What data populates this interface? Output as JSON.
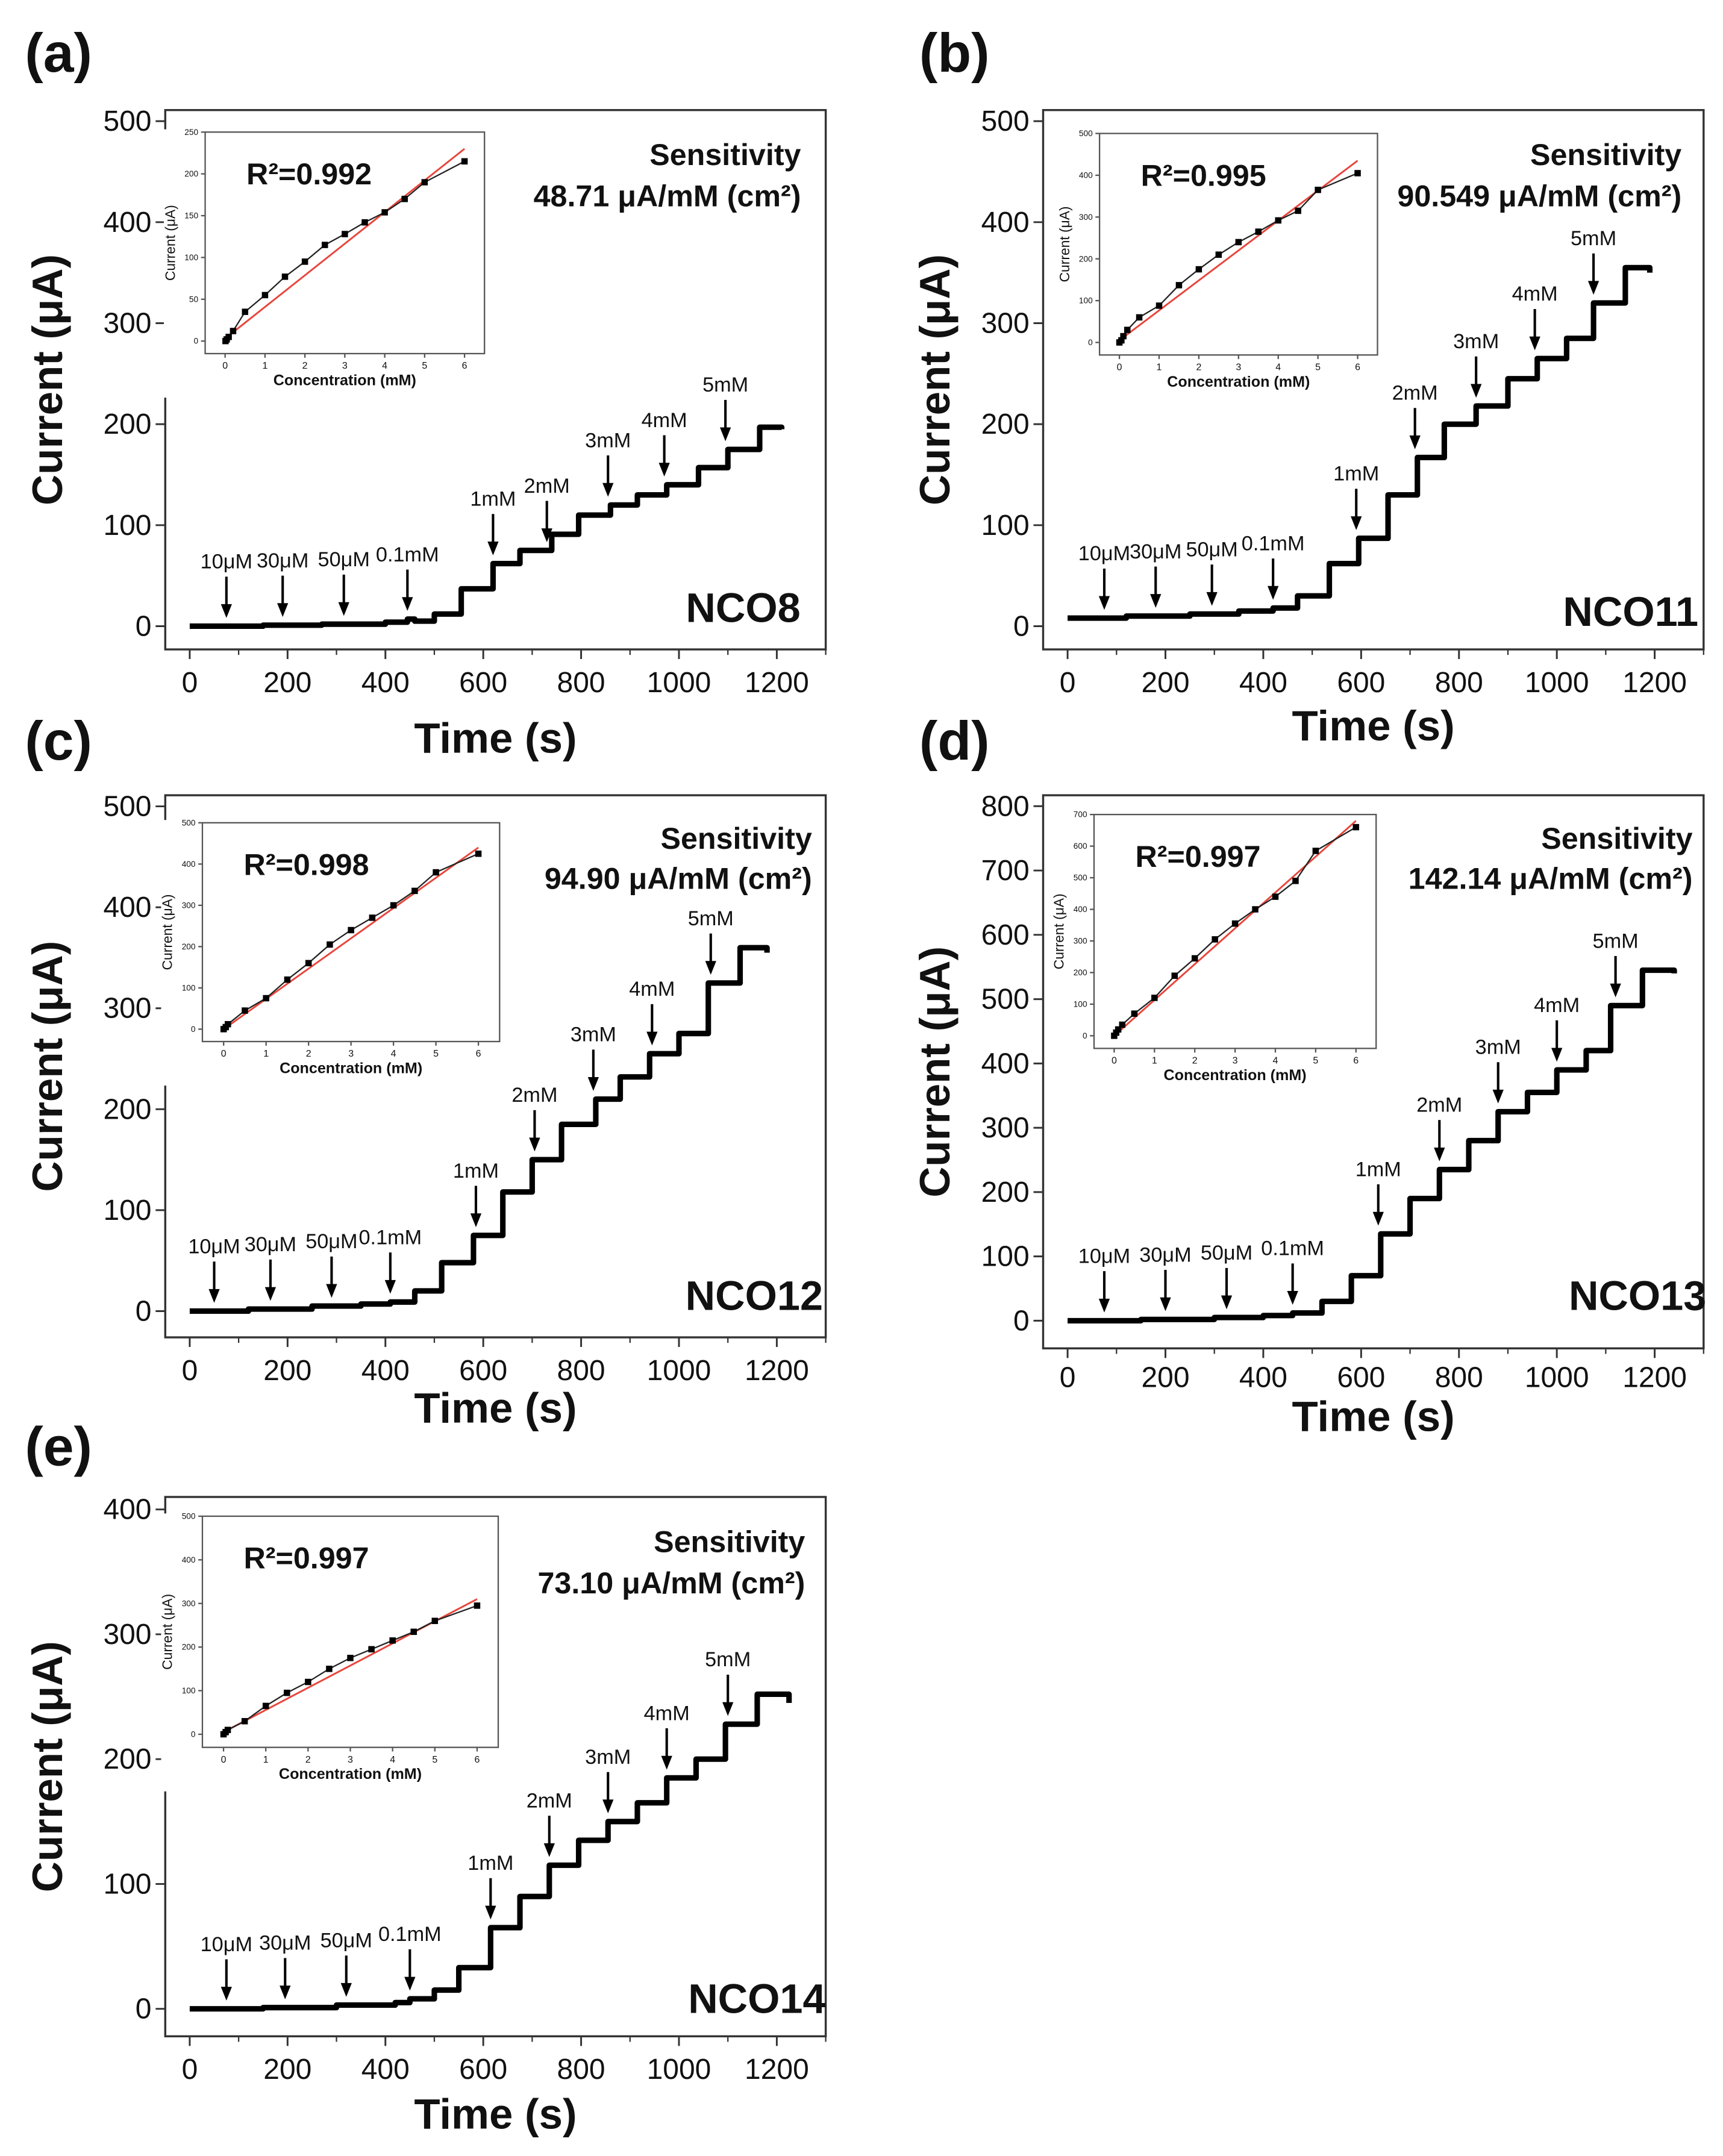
{
  "chart_data": [
    {
      "type": "line",
      "panel": "(a)",
      "sample": "NCO8",
      "sensitivity_label": "Sensitivity",
      "sensitivity_value": "48.71 μA/mM (cm²)",
      "xlabel": "Time (s)",
      "ylabel": "Current (μA)",
      "xlim": [
        -50,
        1300
      ],
      "ylim": [
        -23,
        511
      ],
      "xticks": [
        0,
        200,
        400,
        600,
        800,
        1000,
        1200
      ],
      "yticks": [
        0,
        100,
        200,
        300,
        400,
        500
      ],
      "trace": [
        [
          0,
          0
        ],
        [
          150,
          1
        ],
        [
          270,
          2
        ],
        [
          400,
          4
        ],
        [
          445,
          7
        ],
        [
          460,
          5
        ],
        [
          500,
          12
        ],
        [
          555,
          37
        ],
        [
          620,
          62
        ],
        [
          675,
          75
        ],
        [
          740,
          91
        ],
        [
          795,
          110
        ],
        [
          860,
          120
        ],
        [
          915,
          130
        ],
        [
          975,
          140
        ],
        [
          1040,
          157
        ],
        [
          1100,
          175
        ],
        [
          1165,
          197
        ],
        [
          1210,
          195
        ]
      ],
      "arrows": [
        {
          "t": 75,
          "label": "10μM"
        },
        {
          "t": 190,
          "label": "30μM"
        },
        {
          "t": 315,
          "label": "50μM"
        },
        {
          "t": 445,
          "label": "0.1mM"
        },
        {
          "t": 620,
          "label": "1mM"
        },
        {
          "t": 730,
          "label": "2mM"
        },
        {
          "t": 855,
          "label": "3mM"
        },
        {
          "t": 970,
          "label": "4mM"
        },
        {
          "t": 1095,
          "label": "5mM"
        }
      ],
      "inset": {
        "r2": "R²=0.992",
        "xlabel": "Concentration (mM)",
        "ylabel": "Current (μA)",
        "xlim": [
          -0.5,
          6.5
        ],
        "ylim": [
          -15,
          250
        ],
        "xticks": [
          0,
          1,
          2,
          3,
          4,
          5,
          6
        ],
        "yticks": [
          0,
          50,
          100,
          150,
          200,
          250
        ],
        "points": [
          [
            0.01,
            0
          ],
          [
            0.04,
            2
          ],
          [
            0.09,
            5
          ],
          [
            0.2,
            12
          ],
          [
            0.5,
            35
          ],
          [
            1,
            55
          ],
          [
            1.5,
            77
          ],
          [
            2,
            95
          ],
          [
            2.5,
            115
          ],
          [
            3,
            128
          ],
          [
            3.5,
            142
          ],
          [
            4,
            154
          ],
          [
            4.5,
            170
          ],
          [
            5,
            190
          ],
          [
            6,
            215
          ]
        ],
        "fit": [
          [
            0,
            3
          ],
          [
            6,
            230
          ]
        ]
      }
    },
    {
      "type": "line",
      "panel": "(b)",
      "sample": "NCO11",
      "sensitivity_label": "Sensitivity",
      "sensitivity_value": "90.549 μA/mM (cm²)",
      "xlabel": "Time (s)",
      "ylabel": "Current (μA)",
      "xlim": [
        -50,
        1300
      ],
      "ylim": [
        -23,
        511
      ],
      "xticks": [
        0,
        200,
        400,
        600,
        800,
        1000,
        1200
      ],
      "yticks": [
        0,
        100,
        200,
        300,
        400,
        500
      ],
      "trace": [
        [
          0,
          8
        ],
        [
          120,
          10
        ],
        [
          250,
          12
        ],
        [
          350,
          15
        ],
        [
          420,
          18
        ],
        [
          470,
          30
        ],
        [
          535,
          62
        ],
        [
          595,
          87
        ],
        [
          655,
          130
        ],
        [
          715,
          167
        ],
        [
          770,
          200
        ],
        [
          835,
          218
        ],
        [
          900,
          245
        ],
        [
          960,
          265
        ],
        [
          1020,
          285
        ],
        [
          1075,
          320
        ],
        [
          1140,
          355
        ],
        [
          1190,
          350
        ]
      ],
      "arrows": [
        {
          "t": 75,
          "label": "10μM"
        },
        {
          "t": 180,
          "label": "30μM"
        },
        {
          "t": 295,
          "label": "50μM"
        },
        {
          "t": 420,
          "label": "0.1mM"
        },
        {
          "t": 590,
          "label": "1mM"
        },
        {
          "t": 710,
          "label": "2mM"
        },
        {
          "t": 835,
          "label": "3mM"
        },
        {
          "t": 955,
          "label": "4mM"
        },
        {
          "t": 1075,
          "label": "5mM"
        }
      ],
      "inset": {
        "r2": "R²=0.995",
        "xlabel": "Concentration (mM)",
        "ylabel": "Current (μA)",
        "xlim": [
          -0.5,
          6.5
        ],
        "ylim": [
          -30,
          500
        ],
        "xticks": [
          0,
          1,
          2,
          3,
          4,
          5,
          6
        ],
        "yticks": [
          0,
          100,
          200,
          300,
          400,
          500
        ],
        "points": [
          [
            0,
            0
          ],
          [
            0.05,
            5
          ],
          [
            0.1,
            15
          ],
          [
            0.2,
            30
          ],
          [
            0.5,
            60
          ],
          [
            1,
            88
          ],
          [
            1.5,
            137
          ],
          [
            2,
            175
          ],
          [
            2.5,
            210
          ],
          [
            3,
            240
          ],
          [
            3.5,
            265
          ],
          [
            4,
            292
          ],
          [
            4.5,
            315
          ],
          [
            5,
            365
          ],
          [
            6,
            405
          ]
        ],
        "fit": [
          [
            0,
            5
          ],
          [
            6,
            435
          ]
        ]
      }
    },
    {
      "type": "line",
      "panel": "(c)",
      "sample": "NCO12",
      "sensitivity_label": "Sensitivity",
      "sensitivity_value": "94.90 μA/mM (cm²)",
      "xlabel": "Time (s)",
      "ylabel": "Current (μA)",
      "xlim": [
        -50,
        1300
      ],
      "ylim": [
        -26,
        511
      ],
      "xticks": [
        0,
        200,
        400,
        600,
        800,
        1000,
        1200
      ],
      "yticks": [
        0,
        100,
        200,
        300,
        400,
        500
      ],
      "trace": [
        [
          0,
          0
        ],
        [
          120,
          2
        ],
        [
          250,
          5
        ],
        [
          350,
          7
        ],
        [
          410,
          9
        ],
        [
          460,
          20
        ],
        [
          515,
          48
        ],
        [
          580,
          75
        ],
        [
          640,
          118
        ],
        [
          700,
          150
        ],
        [
          760,
          185
        ],
        [
          830,
          210
        ],
        [
          880,
          232
        ],
        [
          940,
          255
        ],
        [
          1000,
          275
        ],
        [
          1060,
          325
        ],
        [
          1125,
          360
        ],
        [
          1180,
          355
        ]
      ],
      "arrows": [
        {
          "t": 50,
          "label": "10μM"
        },
        {
          "t": 165,
          "label": "30μM"
        },
        {
          "t": 290,
          "label": "50μM"
        },
        {
          "t": 410,
          "label": "0.1mM"
        },
        {
          "t": 585,
          "label": "1mM"
        },
        {
          "t": 705,
          "label": "2mM"
        },
        {
          "t": 825,
          "label": "3mM"
        },
        {
          "t": 945,
          "label": "4mM"
        },
        {
          "t": 1065,
          "label": "5mM"
        }
      ],
      "inset": {
        "r2": "R²=0.998",
        "xlabel": "Concentration (mM)",
        "ylabel": "Current (μA)",
        "xlim": [
          -0.5,
          6.5
        ],
        "ylim": [
          -30,
          500
        ],
        "xticks": [
          0,
          1,
          2,
          3,
          4,
          5,
          6
        ],
        "yticks": [
          0,
          100,
          200,
          300,
          400,
          500
        ],
        "points": [
          [
            0,
            0
          ],
          [
            0.05,
            5
          ],
          [
            0.1,
            12
          ],
          [
            0.5,
            45
          ],
          [
            1,
            75
          ],
          [
            1.5,
            120
          ],
          [
            2,
            160
          ],
          [
            2.5,
            205
          ],
          [
            3,
            240
          ],
          [
            3.5,
            270
          ],
          [
            4,
            300
          ],
          [
            4.5,
            335
          ],
          [
            5,
            380
          ],
          [
            6,
            425
          ]
        ],
        "fit": [
          [
            0,
            0
          ],
          [
            6,
            440
          ]
        ]
      }
    },
    {
      "type": "line",
      "panel": "(d)",
      "sample": "NCO13",
      "sensitivity_label": "Sensitivity",
      "sensitivity_value": "142.14 μA/mM (cm²)",
      "xlabel": "Time (s)",
      "ylabel": "Current (μA)",
      "xlim": [
        -50,
        1300
      ],
      "ylim": [
        -43,
        817
      ],
      "xticks": [
        0,
        200,
        400,
        600,
        800,
        1000,
        1200
      ],
      "yticks": [
        0,
        100,
        200,
        300,
        400,
        500,
        600,
        700,
        800
      ],
      "trace": [
        [
          0,
          0
        ],
        [
          150,
          2
        ],
        [
          300,
          5
        ],
        [
          400,
          8
        ],
        [
          460,
          12
        ],
        [
          520,
          30
        ],
        [
          580,
          70
        ],
        [
          640,
          135
        ],
        [
          700,
          190
        ],
        [
          760,
          235
        ],
        [
          820,
          280
        ],
        [
          880,
          325
        ],
        [
          940,
          355
        ],
        [
          1000,
          390
        ],
        [
          1060,
          420
        ],
        [
          1110,
          490
        ],
        [
          1175,
          545
        ],
        [
          1240,
          540
        ]
      ],
      "arrows": [
        {
          "t": 75,
          "label": "10μM"
        },
        {
          "t": 200,
          "label": "30μM"
        },
        {
          "t": 325,
          "label": "50μM"
        },
        {
          "t": 460,
          "label": "0.1mM"
        },
        {
          "t": 635,
          "label": "1mM"
        },
        {
          "t": 760,
          "label": "2mM"
        },
        {
          "t": 880,
          "label": "3mM"
        },
        {
          "t": 1000,
          "label": "4mM"
        },
        {
          "t": 1120,
          "label": "5mM"
        }
      ],
      "inset": {
        "r2": "R²=0.997",
        "xlabel": "Concentration (mM)",
        "ylabel": "Current (μA)",
        "xlim": [
          -0.5,
          6.5
        ],
        "ylim": [
          -40,
          700
        ],
        "xticks": [
          0,
          1,
          2,
          3,
          4,
          5,
          6
        ],
        "yticks": [
          0,
          100,
          200,
          300,
          400,
          500,
          600,
          700
        ],
        "points": [
          [
            0,
            0
          ],
          [
            0.05,
            10
          ],
          [
            0.1,
            20
          ],
          [
            0.2,
            35
          ],
          [
            0.5,
            70
          ],
          [
            1,
            120
          ],
          [
            1.5,
            190
          ],
          [
            2,
            245
          ],
          [
            2.5,
            305
          ],
          [
            3,
            355
          ],
          [
            3.5,
            400
          ],
          [
            4,
            440
          ],
          [
            4.5,
            490
          ],
          [
            5,
            585
          ],
          [
            6,
            660
          ]
        ],
        "fit": [
          [
            0,
            0
          ],
          [
            6,
            680
          ]
        ]
      }
    },
    {
      "type": "line",
      "panel": "(e)",
      "sample": "NCO14",
      "sensitivity_label": "Sensitivity",
      "sensitivity_value": "73.10 μA/mM (cm²)",
      "xlabel": "Time (s)",
      "ylabel": "Current (μA)",
      "xlim": [
        -50,
        1300
      ],
      "ylim": [
        -22,
        410
      ],
      "xticks": [
        0,
        200,
        400,
        600,
        800,
        1000,
        1200
      ],
      "yticks": [
        0,
        100,
        200,
        300,
        400
      ],
      "trace": [
        [
          0,
          0
        ],
        [
          150,
          1
        ],
        [
          300,
          3
        ],
        [
          420,
          5
        ],
        [
          450,
          8
        ],
        [
          500,
          15
        ],
        [
          550,
          33
        ],
        [
          615,
          65
        ],
        [
          675,
          90
        ],
        [
          735,
          115
        ],
        [
          795,
          135
        ],
        [
          855,
          150
        ],
        [
          915,
          165
        ],
        [
          975,
          185
        ],
        [
          1035,
          200
        ],
        [
          1095,
          228
        ],
        [
          1160,
          252
        ],
        [
          1225,
          245
        ]
      ],
      "arrows": [
        {
          "t": 75,
          "label": "10μM"
        },
        {
          "t": 195,
          "label": "30μM"
        },
        {
          "t": 320,
          "label": "50μM"
        },
        {
          "t": 450,
          "label": "0.1mM"
        },
        {
          "t": 615,
          "label": "1mM"
        },
        {
          "t": 735,
          "label": "2mM"
        },
        {
          "t": 855,
          "label": "3mM"
        },
        {
          "t": 975,
          "label": "4mM"
        },
        {
          "t": 1100,
          "label": "5mM"
        }
      ],
      "inset": {
        "r2": "R²=0.997",
        "xlabel": "Concentration (mM)",
        "ylabel": "Current (μA)",
        "xlim": [
          -0.5,
          6.5
        ],
        "ylim": [
          -30,
          500
        ],
        "xticks": [
          0,
          1,
          2,
          3,
          4,
          5,
          6
        ],
        "yticks": [
          0,
          100,
          200,
          300,
          400,
          500
        ],
        "points": [
          [
            0,
            0
          ],
          [
            0.05,
            5
          ],
          [
            0.1,
            10
          ],
          [
            0.5,
            30
          ],
          [
            1,
            65
          ],
          [
            1.5,
            95
          ],
          [
            2,
            120
          ],
          [
            2.5,
            150
          ],
          [
            3,
            175
          ],
          [
            3.5,
            195
          ],
          [
            4,
            215
          ],
          [
            4.5,
            235
          ],
          [
            5,
            260
          ],
          [
            6,
            295
          ]
        ],
        "fit": [
          [
            0,
            5
          ],
          [
            6,
            310
          ]
        ]
      }
    }
  ],
  "colors": {
    "trace": "#000000",
    "fit": "#e8463c",
    "frame": "#333333"
  }
}
